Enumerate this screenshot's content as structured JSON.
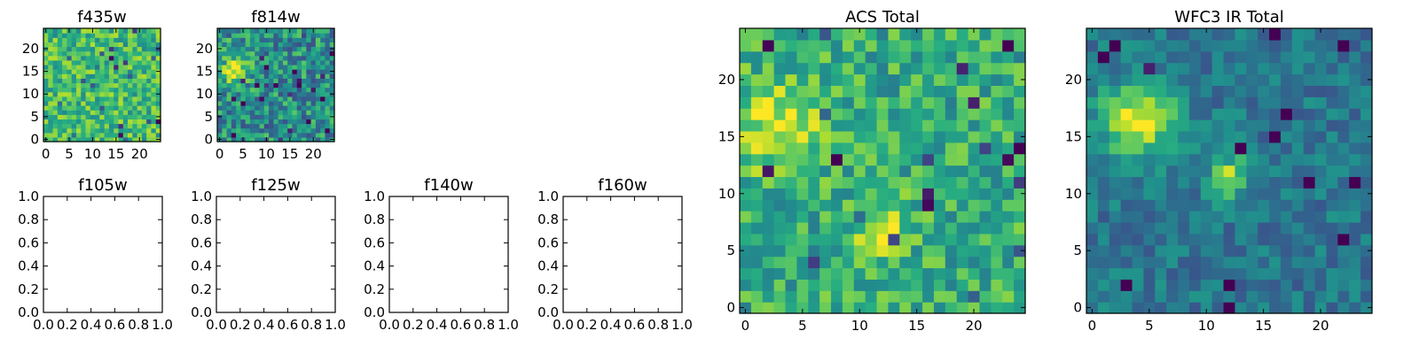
{
  "figure": {
    "panels": [
      {
        "id": "f435w",
        "title": "f435w",
        "kind": "image",
        "seed": 435,
        "xticks": [
          "0",
          "5",
          "10",
          "15",
          "20"
        ],
        "yticks": [
          "0",
          "5",
          "10",
          "15",
          "20"
        ],
        "colormap": "viridis",
        "level_mean": 0.68,
        "level_spread": 0.22,
        "hotspots": []
      },
      {
        "id": "f814w",
        "title": "f814w",
        "kind": "image",
        "seed": 814,
        "xticks": [
          "0",
          "5",
          "10",
          "15",
          "20"
        ],
        "yticks": [
          "0",
          "5",
          "10",
          "15",
          "20"
        ],
        "colormap": "viridis",
        "level_mean": 0.5,
        "level_spread": 0.25,
        "hotspots": [
          {
            "x": 3,
            "y": 16,
            "r": 2.5,
            "amp": 0.45
          }
        ]
      },
      {
        "id": "f105w",
        "title": "f105w",
        "kind": "empty",
        "xticks": [
          "0.0",
          "0.2",
          "0.4",
          "0.6",
          "0.8",
          "1.0"
        ],
        "yticks": [
          "0.0",
          "0.2",
          "0.4",
          "0.6",
          "0.8",
          "1.0"
        ]
      },
      {
        "id": "f125w",
        "title": "f125w",
        "kind": "empty",
        "xticks": [
          "0.0",
          "0.2",
          "0.4",
          "0.6",
          "0.8",
          "1.0"
        ],
        "yticks": [
          "0.0",
          "0.2",
          "0.4",
          "0.6",
          "0.8",
          "1.0"
        ]
      },
      {
        "id": "f140w",
        "title": "f140w",
        "kind": "empty",
        "xticks": [
          "0.0",
          "0.2",
          "0.4",
          "0.6",
          "0.8",
          "1.0"
        ],
        "yticks": [
          "0.0",
          "0.2",
          "0.4",
          "0.6",
          "0.8",
          "1.0"
        ]
      },
      {
        "id": "f160w",
        "title": "f160w",
        "kind": "empty",
        "xticks": [
          "0.0",
          "0.2",
          "0.4",
          "0.6",
          "0.8",
          "1.0"
        ],
        "yticks": [
          "0.0",
          "0.2",
          "0.4",
          "0.6",
          "0.8",
          "1.0"
        ]
      },
      {
        "id": "acs-total",
        "title": "ACS Total",
        "kind": "image",
        "seed": 2001,
        "xticks": [
          "0",
          "5",
          "10",
          "15",
          "20"
        ],
        "yticks": [
          "0",
          "5",
          "10",
          "15",
          "20"
        ],
        "colormap": "viridis",
        "level_mean": 0.62,
        "level_spread": 0.2,
        "hotspots": [
          {
            "x": 3,
            "y": 16,
            "r": 2.8,
            "amp": 0.35
          },
          {
            "x": 12,
            "y": 7,
            "r": 1.8,
            "amp": 0.3
          }
        ]
      },
      {
        "id": "wfc3-ir-total",
        "title": "WFC3 IR Total",
        "kind": "image",
        "seed": 3003,
        "xticks": [
          "0",
          "5",
          "10",
          "15",
          "20"
        ],
        "yticks": [
          "0",
          "5",
          "10",
          "15",
          "20"
        ],
        "colormap": "viridis",
        "level_mean": 0.4,
        "level_spread": 0.13,
        "hotspots": [
          {
            "x": 4,
            "y": 16.5,
            "r": 2.2,
            "amp": 0.6
          },
          {
            "x": 12,
            "y": 11.5,
            "r": 1.3,
            "amp": 0.45
          }
        ]
      }
    ]
  },
  "chart_data": [
    {
      "type": "heatmap",
      "title": "f435w",
      "x_range": [
        0,
        24
      ],
      "y_range": [
        0,
        24
      ],
      "xticks": [
        0,
        5,
        10,
        15,
        20
      ],
      "yticks": [
        0,
        5,
        10,
        15,
        20
      ],
      "grid": false,
      "colormap": "viridis",
      "pixels": [
        25,
        25
      ],
      "note_values": "noisy image, mostly high (yellow-green)"
    },
    {
      "type": "heatmap",
      "title": "f814w",
      "x_range": [
        0,
        24
      ],
      "y_range": [
        0,
        24
      ],
      "xticks": [
        0,
        5,
        10,
        15,
        20
      ],
      "yticks": [
        0,
        5,
        10,
        15,
        20
      ],
      "grid": false,
      "colormap": "viridis",
      "pixels": [
        25,
        25
      ],
      "bright_spot": {
        "x": 3,
        "y": 16
      }
    },
    {
      "type": "scatter",
      "title": "f105w",
      "x_range": [
        0,
        1
      ],
      "y_range": [
        0,
        1
      ],
      "xticks": [
        0.0,
        0.2,
        0.4,
        0.6,
        0.8,
        1.0
      ],
      "yticks": [
        0.0,
        0.2,
        0.4,
        0.6,
        0.8,
        1.0
      ],
      "series": []
    },
    {
      "type": "scatter",
      "title": "f125w",
      "x_range": [
        0,
        1
      ],
      "y_range": [
        0,
        1
      ],
      "xticks": [
        0.0,
        0.2,
        0.4,
        0.6,
        0.8,
        1.0
      ],
      "yticks": [
        0.0,
        0.2,
        0.4,
        0.6,
        0.8,
        1.0
      ],
      "series": []
    },
    {
      "type": "scatter",
      "title": "f140w",
      "x_range": [
        0,
        1
      ],
      "y_range": [
        0,
        1
      ],
      "xticks": [
        0.0,
        0.2,
        0.4,
        0.6,
        0.8,
        1.0
      ],
      "yticks": [
        0.0,
        0.2,
        0.4,
        0.6,
        0.8,
        1.0
      ],
      "series": []
    },
    {
      "type": "scatter",
      "title": "f160w",
      "x_range": [
        0,
        1
      ],
      "y_range": [
        0,
        1
      ],
      "xticks": [
        0.0,
        0.2,
        0.4,
        0.6,
        0.8,
        1.0
      ],
      "yticks": [
        0.0,
        0.2,
        0.4,
        0.6,
        0.8,
        1.0
      ],
      "series": []
    },
    {
      "type": "heatmap",
      "title": "ACS Total",
      "x_range": [
        0,
        24
      ],
      "y_range": [
        0,
        24
      ],
      "xticks": [
        0,
        5,
        10,
        15,
        20
      ],
      "yticks": [
        0,
        5,
        10,
        15,
        20
      ],
      "grid": false,
      "colormap": "viridis",
      "pixels": [
        25,
        25
      ],
      "bright_spots": [
        {
          "x": 3,
          "y": 16
        },
        {
          "x": 12,
          "y": 7
        }
      ]
    },
    {
      "type": "heatmap",
      "title": "WFC3 IR Total",
      "x_range": [
        0,
        24
      ],
      "y_range": [
        0,
        24
      ],
      "xticks": [
        0,
        5,
        10,
        15,
        20
      ],
      "yticks": [
        0,
        5,
        10,
        15,
        20
      ],
      "grid": false,
      "colormap": "viridis",
      "pixels": [
        25,
        25
      ],
      "bright_spots": [
        {
          "x": 4,
          "y": 16.5
        },
        {
          "x": 12,
          "y": 11.5
        }
      ]
    }
  ]
}
